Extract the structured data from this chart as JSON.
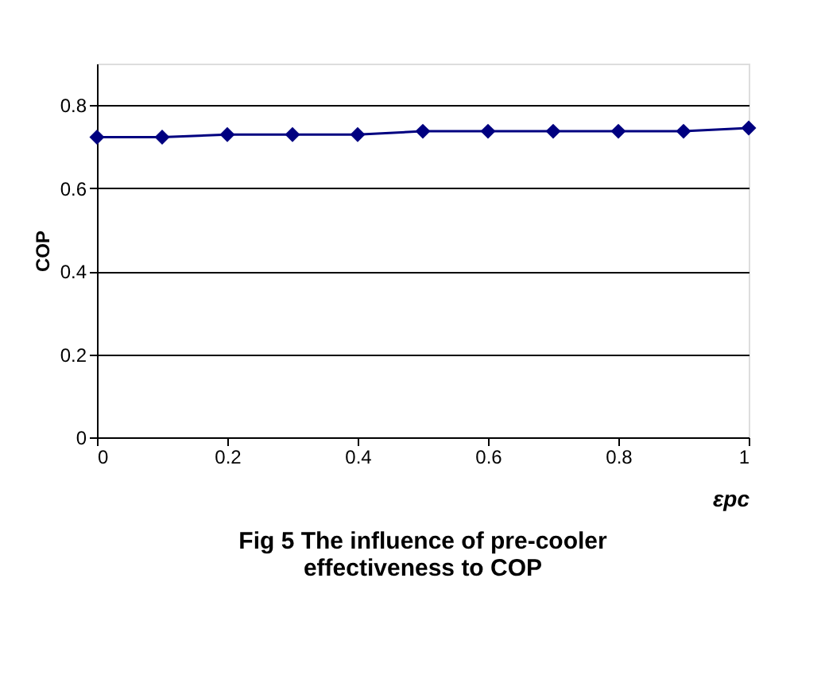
{
  "chart_data": {
    "type": "line",
    "title": "Fig 5  The influence of pre-cooler\neffectiveness to COP",
    "xlabel": "εpc",
    "ylabel": "COP",
    "x": [
      0,
      0.1,
      0.2,
      0.3,
      0.4,
      0.5,
      0.6,
      0.7,
      0.8,
      0.9,
      1
    ],
    "series": [
      {
        "color": "#000080",
        "values": [
          0.723,
          0.723,
          0.729,
          0.729,
          0.729,
          0.737,
          0.737,
          0.737,
          0.737,
          0.737,
          0.745
        ]
      }
    ],
    "xlim": [
      0,
      1
    ],
    "xticks": [
      0,
      0.2,
      0.4,
      0.6,
      0.8,
      1
    ],
    "ylim": [
      0,
      0.9
    ],
    "yticks": [
      0,
      0.2,
      0.4,
      0.6,
      0.8
    ],
    "grid": "y",
    "marker": "diamond",
    "line_style": "solid"
  }
}
